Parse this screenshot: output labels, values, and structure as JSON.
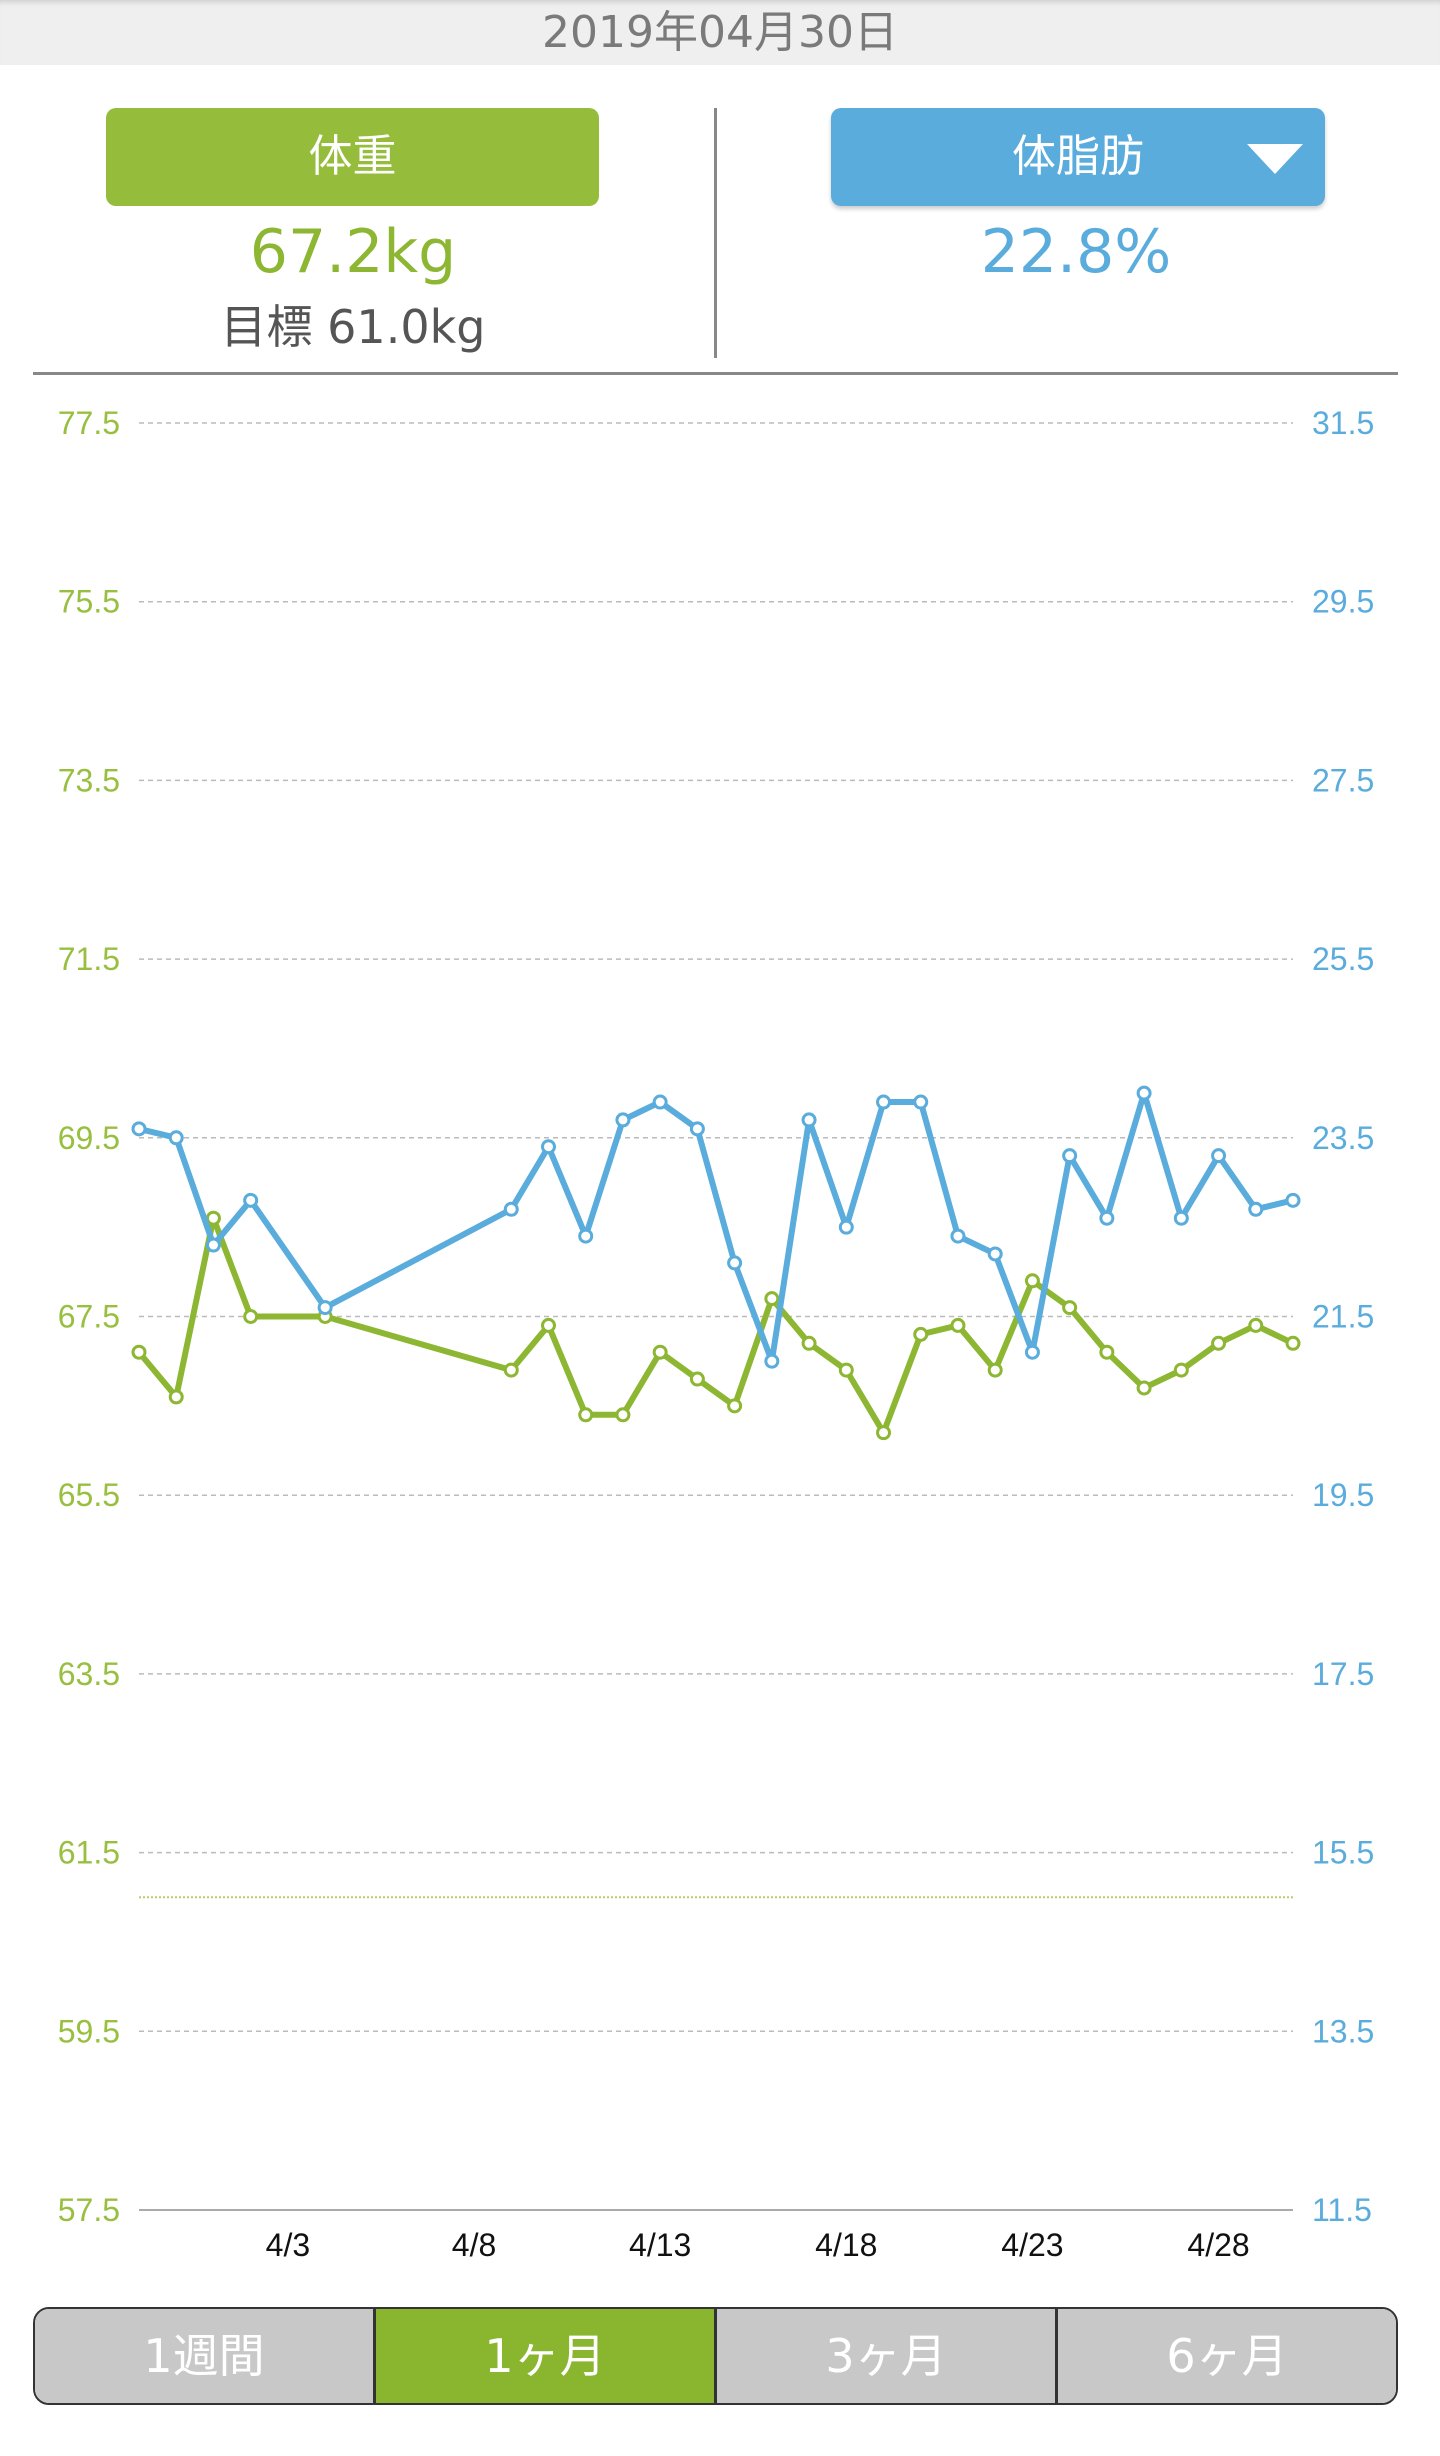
{
  "header": {
    "date": "2019年04月30日"
  },
  "weight_panel": {
    "button_label": "体重",
    "value": "67.2kg",
    "goal": "目標 61.0kg"
  },
  "fat_panel": {
    "button_label": "体脂肪",
    "value": "22.8%",
    "dropdown_icon": "triangle-down-icon"
  },
  "colors": {
    "weight": "#8db732",
    "fat": "#5aacdc",
    "tab_selected": "#8ab52e",
    "tab_default": "#c8c8c8"
  },
  "tabs": [
    {
      "label": "1週間",
      "selected": false
    },
    {
      "label": "1ヶ月",
      "selected": true
    },
    {
      "label": "3ヶ月",
      "selected": false
    },
    {
      "label": "6ヶ月",
      "selected": false
    }
  ],
  "chart_data": {
    "type": "line",
    "x": [
      "3/30",
      "3/31",
      "4/1",
      "4/2",
      "4/4",
      "4/9",
      "4/10",
      "4/11",
      "4/12",
      "4/13",
      "4/14",
      "4/15",
      "4/16",
      "4/17",
      "4/18",
      "4/19",
      "4/20",
      "4/21",
      "4/22",
      "4/23",
      "4/24",
      "4/25",
      "4/26",
      "4/27",
      "4/28",
      "4/29",
      "4/30"
    ],
    "x_day_offsets": [
      0,
      1,
      2,
      3,
      5,
      10,
      11,
      12,
      13,
      14,
      15,
      16,
      17,
      18,
      19,
      20,
      21,
      22,
      23,
      24,
      25,
      26,
      27,
      28,
      29,
      30,
      31
    ],
    "x_range_days": [
      0,
      31
    ],
    "x_ticks": [
      {
        "label": "4/3",
        "day": 4
      },
      {
        "label": "4/8",
        "day": 9
      },
      {
        "label": "4/13",
        "day": 14
      },
      {
        "label": "4/18",
        "day": 19
      },
      {
        "label": "4/23",
        "day": 24
      },
      {
        "label": "4/28",
        "day": 29
      }
    ],
    "series": [
      {
        "name": "体重",
        "axis": "left",
        "color": "#8db732",
        "values": [
          67.1,
          66.6,
          68.6,
          67.5,
          67.5,
          66.9,
          67.4,
          66.4,
          66.4,
          67.1,
          66.8,
          66.5,
          67.7,
          67.2,
          66.9,
          66.2,
          67.3,
          67.4,
          66.9,
          67.9,
          67.6,
          67.1,
          66.7,
          66.9,
          67.2,
          67.4,
          67.2
        ]
      },
      {
        "name": "体脂肪",
        "axis": "right",
        "color": "#5aacdc",
        "values": [
          23.6,
          23.5,
          22.3,
          22.8,
          21.6,
          22.7,
          23.4,
          22.4,
          23.7,
          23.9,
          23.6,
          22.1,
          21.0,
          23.7,
          22.5,
          23.9,
          23.9,
          22.4,
          22.2,
          21.1,
          23.3,
          22.6,
          24.0,
          22.6,
          23.3,
          22.7,
          22.8
        ]
      }
    ],
    "goal_line": {
      "series": "体重",
      "value": 61.0
    },
    "y_left": {
      "range": [
        57.5,
        77.5
      ],
      "ticks": [
        "77.5",
        "75.5",
        "73.5",
        "71.5",
        "69.5",
        "67.5",
        "65.5",
        "63.5",
        "61.5",
        "59.5",
        "57.5"
      ]
    },
    "y_right": {
      "range": [
        11.5,
        31.5
      ],
      "ticks": [
        "31.5",
        "29.5",
        "27.5",
        "25.5",
        "23.5",
        "21.5",
        "19.5",
        "17.5",
        "15.5",
        "13.5",
        "11.5"
      ]
    },
    "grid": true,
    "legend": "none"
  }
}
